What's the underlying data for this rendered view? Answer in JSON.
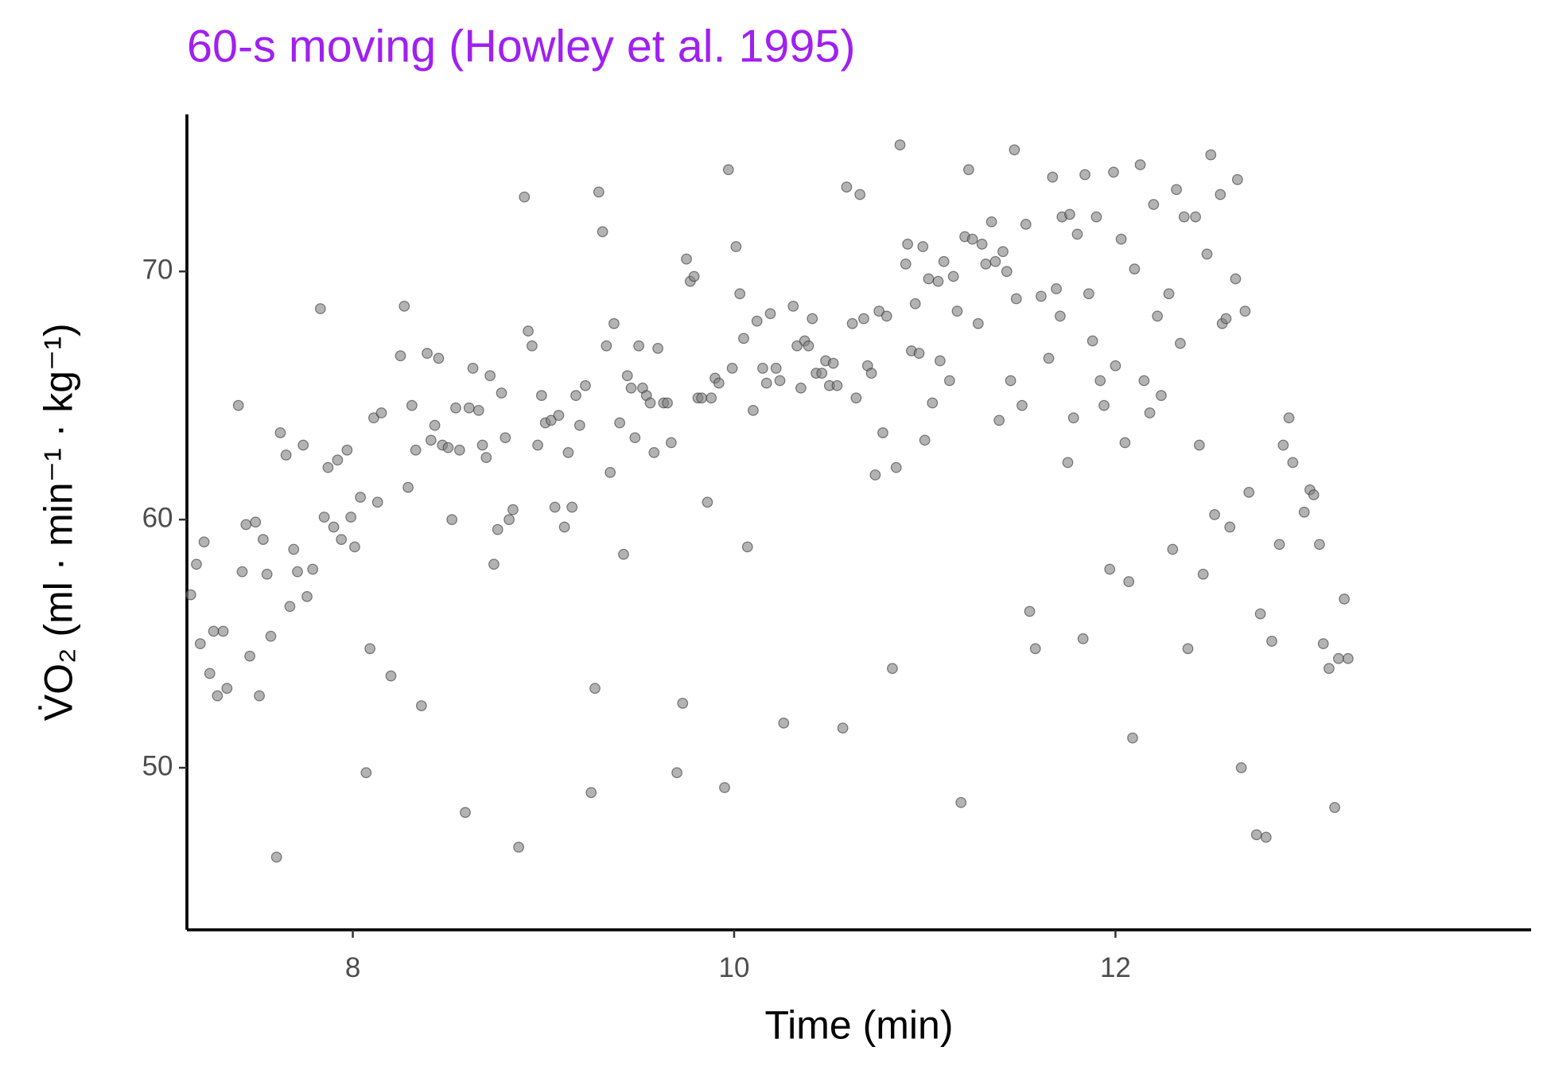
{
  "chart_data": {
    "type": "scatter",
    "title": "60-s moving (Howley et al. 1995)",
    "x_label": "Time (min)",
    "y_label": "V̇O₂ (ml · min⁻¹ · kg⁻¹)",
    "color": "#808080",
    "xlim": [
      7.13,
      14.18
    ],
    "ylim": [
      43.47,
      76.33
    ],
    "xticks": [
      8,
      10,
      12
    ],
    "yticks": [
      50,
      60,
      70
    ],
    "grid": false,
    "x": [
      7.15,
      7.18,
      7.2,
      7.22,
      7.25,
      7.27,
      7.29,
      7.32,
      7.34,
      7.4,
      7.42,
      7.44,
      7.46,
      7.49,
      7.51,
      7.53,
      7.55,
      7.57,
      7.6,
      7.62,
      7.65,
      7.67,
      7.69,
      7.71,
      7.74,
      7.76,
      7.79,
      7.83,
      7.85,
      7.87,
      7.9,
      7.92,
      7.94,
      7.97,
      7.99,
      8.01,
      8.04,
      8.07,
      8.09,
      8.11,
      8.13,
      8.15,
      8.2,
      8.25,
      8.27,
      8.29,
      8.31,
      8.33,
      8.36,
      8.39,
      8.41,
      8.43,
      8.45,
      8.47,
      8.5,
      8.52,
      8.54,
      8.56,
      8.59,
      8.61,
      8.63,
      8.66,
      8.68,
      8.7,
      8.72,
      8.74,
      8.76,
      8.78,
      8.8,
      8.82,
      8.84,
      8.87,
      8.9,
      8.92,
      8.94,
      8.97,
      8.99,
      9.01,
      9.04,
      9.06,
      9.08,
      9.11,
      9.13,
      9.15,
      9.17,
      9.19,
      9.22,
      9.25,
      9.27,
      9.29,
      9.31,
      9.33,
      9.35,
      9.37,
      9.4,
      9.42,
      9.44,
      9.46,
      9.48,
      9.5,
      9.52,
      9.54,
      9.56,
      9.58,
      9.6,
      9.63,
      9.65,
      9.67,
      9.7,
      9.73,
      9.75,
      9.77,
      9.79,
      9.81,
      9.83,
      9.86,
      9.88,
      9.9,
      9.92,
      9.95,
      9.97,
      9.99,
      10.01,
      10.03,
      10.05,
      10.07,
      10.1,
      10.12,
      10.15,
      10.17,
      10.19,
      10.22,
      10.24,
      10.26,
      10.31,
      10.33,
      10.35,
      10.37,
      10.39,
      10.41,
      10.43,
      10.46,
      10.48,
      10.5,
      10.52,
      10.54,
      10.57,
      10.59,
      10.62,
      10.64,
      10.66,
      10.68,
      10.7,
      10.72,
      10.74,
      10.76,
      10.78,
      10.8,
      10.83,
      10.85,
      10.87,
      10.9,
      10.91,
      10.93,
      10.95,
      10.97,
      10.99,
      11.0,
      11.02,
      11.04,
      11.07,
      11.08,
      11.1,
      11.13,
      11.15,
      11.17,
      11.19,
      11.21,
      11.23,
      11.25,
      11.28,
      11.3,
      11.32,
      11.35,
      11.37,
      11.39,
      11.41,
      11.43,
      11.45,
      11.47,
      11.48,
      11.51,
      11.53,
      11.55,
      11.58,
      11.61,
      11.65,
      11.67,
      11.69,
      11.71,
      11.72,
      11.75,
      11.76,
      11.78,
      11.8,
      11.83,
      11.84,
      11.86,
      11.88,
      11.9,
      11.92,
      11.94,
      11.97,
      11.99,
      12.0,
      12.03,
      12.05,
      12.07,
      12.09,
      12.1,
      12.13,
      12.15,
      12.18,
      12.2,
      12.22,
      12.24,
      12.28,
      12.3,
      12.32,
      12.34,
      12.36,
      12.38,
      12.42,
      12.44,
      12.46,
      12.48,
      12.5,
      12.52,
      12.55,
      12.56,
      12.58,
      12.6,
      12.63,
      12.64,
      12.66,
      12.68,
      12.7,
      12.74,
      12.76,
      12.79,
      12.82,
      12.86,
      12.88,
      12.91,
      12.93,
      12.99,
      13.02,
      13.04,
      13.07,
      13.09,
      13.12,
      13.15,
      13.17,
      13.2,
      13.22
    ],
    "values": [
      56.97,
      58.2,
      55.0,
      59.1,
      53.8,
      55.5,
      52.9,
      55.5,
      53.2,
      64.6,
      57.9,
      59.8,
      54.5,
      59.9,
      52.9,
      59.2,
      57.8,
      55.3,
      46.4,
      63.5,
      62.6,
      56.5,
      58.8,
      57.9,
      63.0,
      56.9,
      58.0,
      68.5,
      60.1,
      62.1,
      59.7,
      62.4,
      59.2,
      62.8,
      60.1,
      58.9,
      60.9,
      49.8,
      54.8,
      64.1,
      60.7,
      64.3,
      53.7,
      66.6,
      68.6,
      61.3,
      64.6,
      62.8,
      52.5,
      66.7,
      63.2,
      63.8,
      66.5,
      63.0,
      62.9,
      60.0,
      64.5,
      62.8,
      48.2,
      64.5,
      66.1,
      64.4,
      63.0,
      62.5,
      65.8,
      58.2,
      59.6,
      65.1,
      63.3,
      60.0,
      60.4,
      46.8,
      73.0,
      67.6,
      67.0,
      63.0,
      65.0,
      63.9,
      64.0,
      60.5,
      64.2,
      59.7,
      62.7,
      60.5,
      65.0,
      63.8,
      65.4,
      49.0,
      53.2,
      73.2,
      71.6,
      67.0,
      61.9,
      67.9,
      63.9,
      58.6,
      65.8,
      65.3,
      63.3,
      67.0,
      65.3,
      65.0,
      64.7,
      62.7,
      66.9,
      64.7,
      64.7,
      63.1,
      49.8,
      52.6,
      70.5,
      69.6,
      69.8,
      64.9,
      64.9,
      60.7,
      64.9,
      65.7,
      65.5,
      49.2,
      74.1,
      66.1,
      71.0,
      69.1,
      67.3,
      58.9,
      64.4,
      68.0,
      66.1,
      65.5,
      68.3,
      66.1,
      65.6,
      51.8,
      68.6,
      67.0,
      65.3,
      67.2,
      67.0,
      68.1,
      65.9,
      65.9,
      66.4,
      65.4,
      66.3,
      65.4,
      51.6,
      73.4,
      67.9,
      64.9,
      73.1,
      68.1,
      66.2,
      65.9,
      61.8,
      68.4,
      63.5,
      68.2,
      54.0,
      62.1,
      75.1,
      70.3,
      71.1,
      66.8,
      68.7,
      66.7,
      71.0,
      63.2,
      69.7,
      64.7,
      69.6,
      66.4,
      70.4,
      65.6,
      69.8,
      68.4,
      48.6,
      71.4,
      74.1,
      71.3,
      67.9,
      71.1,
      70.3,
      72.0,
      70.4,
      64.0,
      70.8,
      70.0,
      65.6,
      74.9,
      68.9,
      64.6,
      71.9,
      56.3,
      54.8,
      69.0,
      66.5,
      73.8,
      69.3,
      68.2,
      72.2,
      62.3,
      72.3,
      64.1,
      71.5,
      55.2,
      73.9,
      69.1,
      67.2,
      72.2,
      65.6,
      64.6,
      58.0,
      74.0,
      66.2,
      71.3,
      63.1,
      57.5,
      51.2,
      70.1,
      74.3,
      65.6,
      64.3,
      72.7,
      68.2,
      65.0,
      69.1,
      58.8,
      73.3,
      67.1,
      72.2,
      54.8,
      72.2,
      63.0,
      57.8,
      70.7,
      74.7,
      60.2,
      73.1,
      67.9,
      68.1,
      59.7,
      69.7,
      73.7,
      50.0,
      68.4,
      61.1,
      47.3,
      56.2,
      47.2,
      55.1,
      59.0,
      63.0,
      64.1,
      62.3,
      60.3,
      61.2,
      61.0,
      59.0,
      55.0,
      54.0,
      48.4,
      54.4,
      56.8,
      54.4
    ]
  }
}
